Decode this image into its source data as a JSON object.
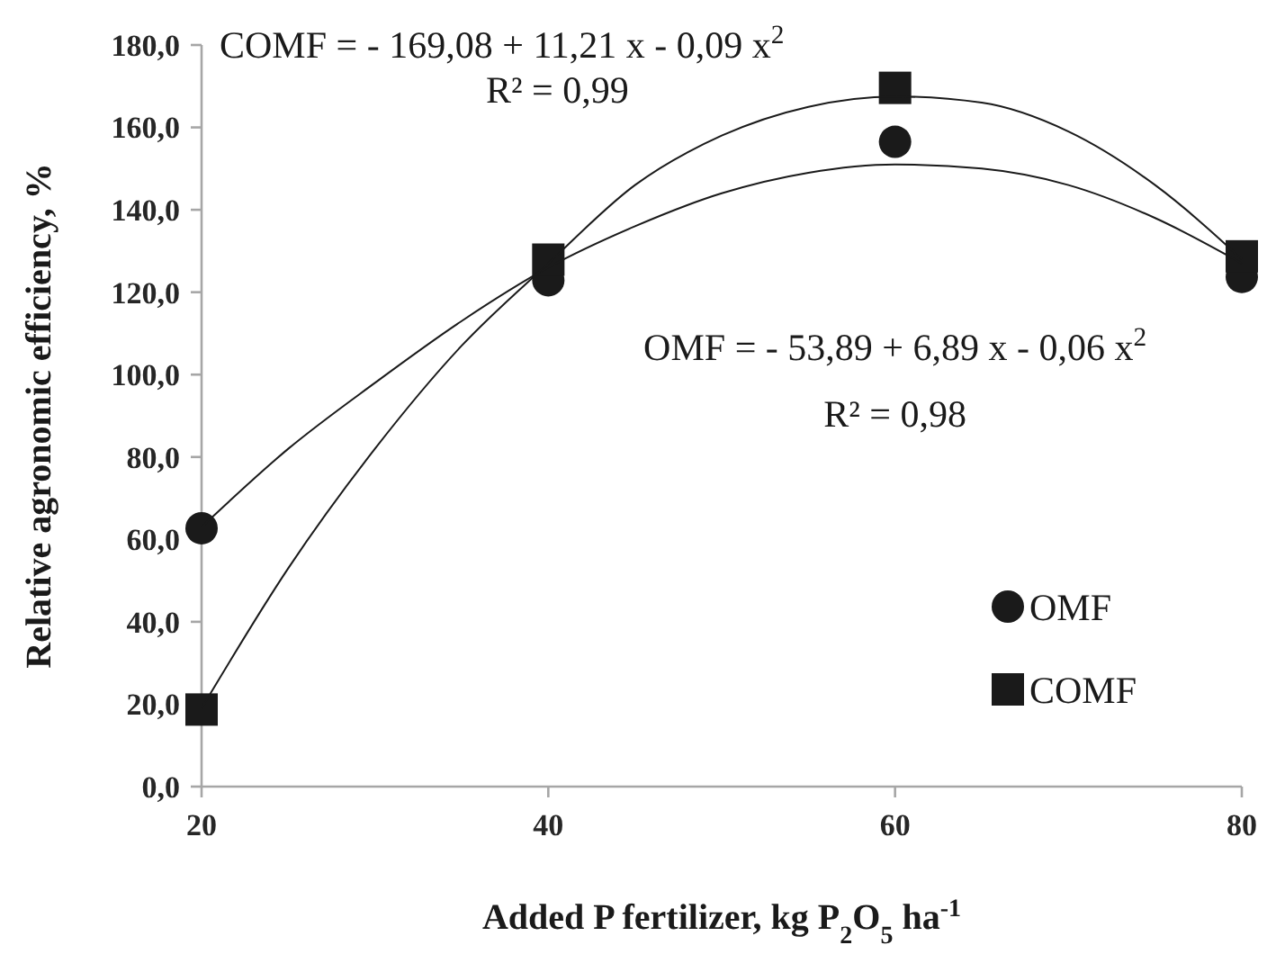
{
  "chart_data": {
    "type": "scatter",
    "xlabel": "Added P fertilizer, kg P$_{2}$O$_{5}$ ha$^{-1}$",
    "ylabel": "Relative agronomic efficiency, %",
    "x": [
      20,
      40,
      60,
      80
    ],
    "series": [
      {
        "name": "OMF",
        "color": "#1a1a1a",
        "marker": "circle",
        "values": [
          62.7,
          122.9,
          156.5,
          123.7
        ]
      },
      {
        "name": "COMF",
        "color": "#1a1a1a",
        "marker": "square",
        "values": [
          18.7,
          127.9,
          169.6,
          128.7
        ]
      },
      {
        "type": "line",
        "color": "#1a1a1a",
        "marker": "none",
        "x": [
          20,
          25,
          30,
          35,
          40,
          45,
          50,
          55,
          60,
          65,
          70,
          75,
          80
        ],
        "values": [
          63,
          82,
          98,
          113,
          126,
          136,
          144,
          149,
          151,
          150,
          146,
          138,
          127
        ]
      },
      {
        "type": "line",
        "color": "#1a1a1a",
        "marker": "none",
        "x": [
          20,
          25,
          30,
          35,
          40,
          45,
          50,
          55,
          60,
          65,
          70,
          75,
          80
        ],
        "values": [
          19,
          53,
          82,
          107,
          127,
          146,
          158,
          165,
          167.5,
          166,
          159,
          146,
          128
        ]
      }
    ],
    "xlim": [
      20,
      80
    ],
    "xticks": [
      20,
      40,
      60,
      80
    ],
    "ylim": [
      0,
      180
    ],
    "yticks": [
      {
        "value": 0,
        "label": "0,0"
      },
      {
        "value": 20,
        "label": "20,0"
      },
      {
        "value": 40,
        "label": "40,0"
      },
      {
        "value": 60,
        "label": "60,0"
      },
      {
        "value": 80,
        "label": "80,0"
      },
      {
        "value": 100,
        "label": "100,0"
      },
      {
        "value": 120,
        "label": "120,0"
      },
      {
        "value": 140,
        "label": "140,0"
      },
      {
        "value": 160,
        "label": "160,0"
      },
      {
        "value": 180,
        "label": "180,0"
      }
    ],
    "annotations": [
      "COMF = - 169,08 + 11,21 x - 0,09 x$^{2}$",
      "R² = 0,99",
      "OMF = - 53,89 + 6,89 x - 0,06 x$^{2}$",
      "R² = 0,98"
    ],
    "legend": "bottom right",
    "grid": false
  }
}
